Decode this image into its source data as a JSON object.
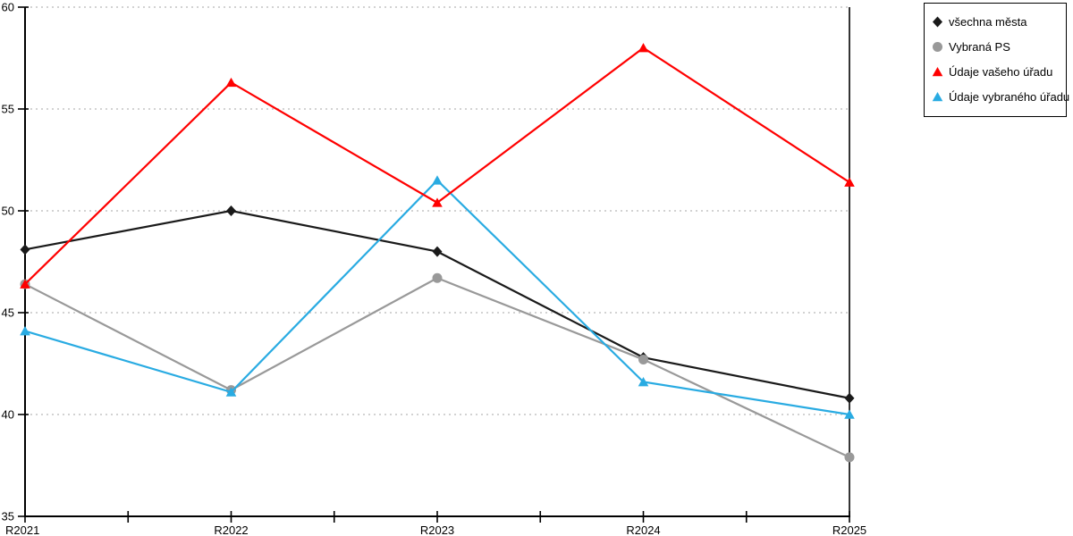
{
  "chart_data": {
    "type": "line",
    "title": "",
    "xlabel": "",
    "ylabel": "",
    "categories": [
      "R2021",
      "R2022",
      "R2023",
      "R2024",
      "R2025"
    ],
    "series": [
      {
        "name": "všechna města",
        "color": "#1a1a1a",
        "marker": "diamond",
        "values": [
          48.1,
          50.0,
          48.0,
          42.8,
          40.8
        ]
      },
      {
        "name": "Vybraná PS",
        "color": "#999999",
        "marker": "circle",
        "values": [
          46.4,
          41.2,
          46.7,
          42.7,
          37.9
        ]
      },
      {
        "name": "Údaje vašeho úřadu",
        "color": "#ff0000",
        "marker": "triangle",
        "values": [
          46.4,
          56.3,
          50.4,
          58.0,
          51.4
        ]
      },
      {
        "name": "Údaje vybraného úřadu",
        "color": "#29abe2",
        "marker": "triangle",
        "values": [
          44.1,
          41.1,
          51.5,
          41.6,
          40.0
        ]
      }
    ],
    "ylim": [
      35,
      60
    ],
    "ytick_step": 5,
    "ytick_labels": [
      "35",
      "40",
      "45",
      "50",
      "55",
      "60"
    ],
    "x_minor_ticks": true,
    "grid": "horizontal-dotted",
    "legend_position": "top-right-outside",
    "draw_order": [
      0,
      1,
      3,
      2
    ]
  },
  "colors": {
    "background": "#ffffff",
    "axis": "#000000",
    "grid": "#c4c4c4",
    "legend_border": "#000000"
  }
}
